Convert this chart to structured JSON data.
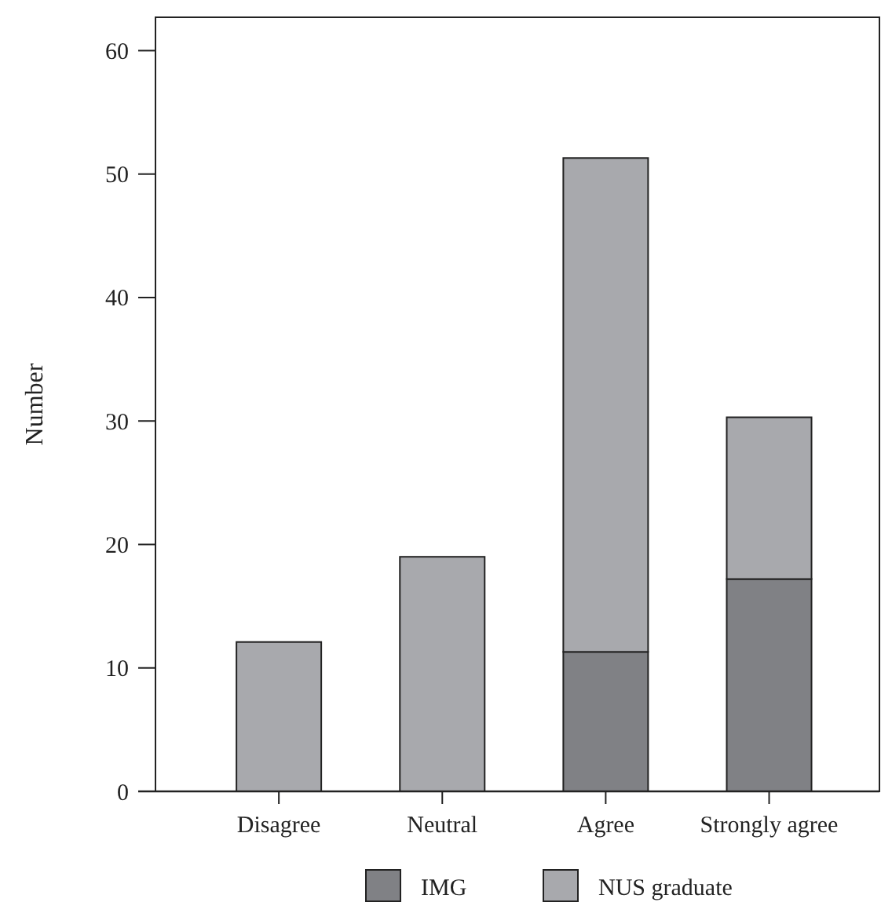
{
  "chart_data": {
    "type": "bar",
    "ylabel": "Number",
    "categories": [
      "Disagree",
      "Neutral",
      "Agree",
      "Strongly agree"
    ],
    "stacked": true,
    "series": [
      {
        "name": "IMG",
        "color": "#808185",
        "values": [
          0,
          0,
          11.3,
          17.2
        ]
      },
      {
        "name": "NUS graduate",
        "color": "#a8a9ad",
        "values": [
          12.1,
          19,
          40,
          13.1
        ]
      }
    ],
    "ylim": [
      0,
      62.7
    ],
    "yticks": [
      0,
      10,
      20,
      30,
      40,
      50,
      60
    ],
    "legend": "bottom",
    "grid": false
  }
}
